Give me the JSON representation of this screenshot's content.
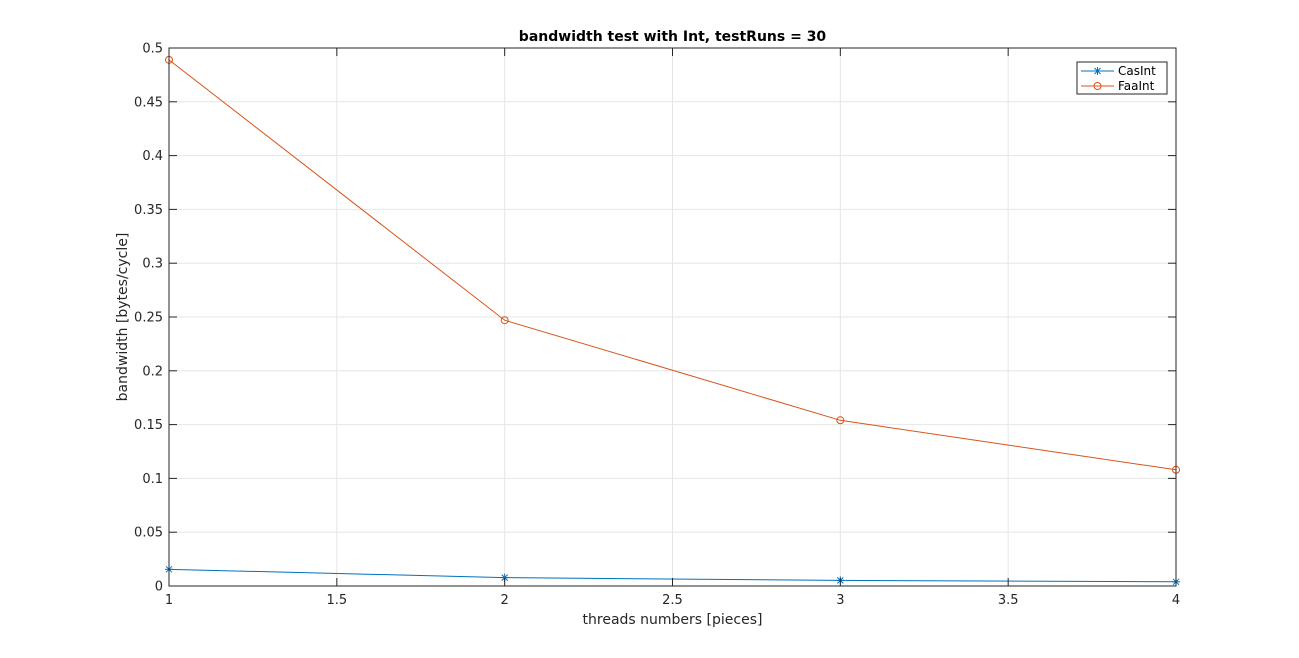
{
  "chart_data": {
    "type": "line",
    "title": "bandwidth test with Int, testRuns = 30",
    "xlabel": "threads numbers [pieces]",
    "ylabel": "bandwidth [bytes/cycle]",
    "xlim": [
      1,
      4
    ],
    "ylim": [
      0,
      0.5
    ],
    "xticks": [
      1,
      1.5,
      2,
      2.5,
      3,
      3.5,
      4
    ],
    "xtick_labels": [
      "1",
      "1.5",
      "2",
      "2.5",
      "3",
      "3.5",
      "4"
    ],
    "yticks": [
      0,
      0.05,
      0.1,
      0.15,
      0.2,
      0.25,
      0.3,
      0.35,
      0.4,
      0.45,
      0.5
    ],
    "ytick_labels": [
      "0",
      "0.05",
      "0.1",
      "0.15",
      "0.2",
      "0.25",
      "0.3",
      "0.35",
      "0.4",
      "0.45",
      "0.5"
    ],
    "grid": true,
    "legend_position": "top-right",
    "x": [
      1,
      2,
      3,
      4
    ],
    "series": [
      {
        "name": "CasInt",
        "values": [
          0.0155,
          0.0078,
          0.0052,
          0.0039
        ],
        "color": "#0072BD",
        "marker": "asterisk"
      },
      {
        "name": "FaaInt",
        "values": [
          0.489,
          0.247,
          0.154,
          0.108
        ],
        "color": "#D95319",
        "marker": "circle"
      }
    ]
  }
}
